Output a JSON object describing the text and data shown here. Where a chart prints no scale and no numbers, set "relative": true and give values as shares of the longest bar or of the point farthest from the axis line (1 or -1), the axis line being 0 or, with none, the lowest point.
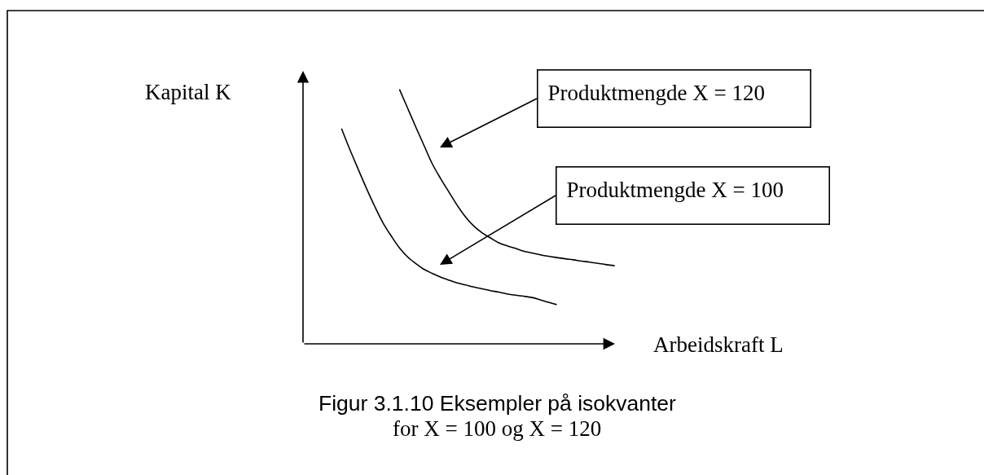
{
  "chart_data": {
    "type": "line",
    "relative": true,
    "xlabel": "Arbeidskraft L",
    "ylabel": "Kapital K",
    "annotations": [
      "Produktmengde X = 120",
      "Produktmengde X = 100",
      "Figur 3.1.10 Eksempler på isokvanter",
      "for X = 100 og X = 120"
    ],
    "categories": [
      null,
      null,
      null,
      null,
      null,
      null,
      null,
      null,
      null,
      null,
      null,
      null,
      null,
      null,
      null,
      null,
      null,
      null,
      null,
      null,
      null,
      null,
      null,
      null,
      null,
      null,
      null,
      null,
      null,
      null,
      null,
      null,
      null,
      null
    ],
    "series": [
      {
        "color": "#000000",
        "values": [
          null,
          null,
          null,
          null,
          null,
          null,
          null,
          1.0,
          0.925,
          0.85,
          0.777,
          0.705,
          0.648,
          0.595,
          0.543,
          0.498,
          0.462,
          0.436,
          0.416,
          0.397,
          0.385,
          0.375,
          0.364,
          0.357,
          0.35,
          0.344,
          0.339,
          0.334,
          0.33,
          0.325,
          0.321,
          0.316,
          0.311,
          0.307
        ]
      },
      {
        "color": "#000000",
        "values": [
          0.846,
          0.764,
          0.687,
          0.612,
          0.541,
          0.476,
          0.424,
          0.377,
          0.341,
          0.315,
          0.292,
          0.276,
          0.262,
          0.25,
          0.239,
          0.231,
          0.223,
          0.216,
          0.209,
          0.203,
          0.196,
          0.191,
          0.187,
          0.182,
          0.173,
          0.163,
          0.154,
          null,
          null,
          null,
          null,
          null,
          null,
          null
        ]
      }
    ]
  }
}
